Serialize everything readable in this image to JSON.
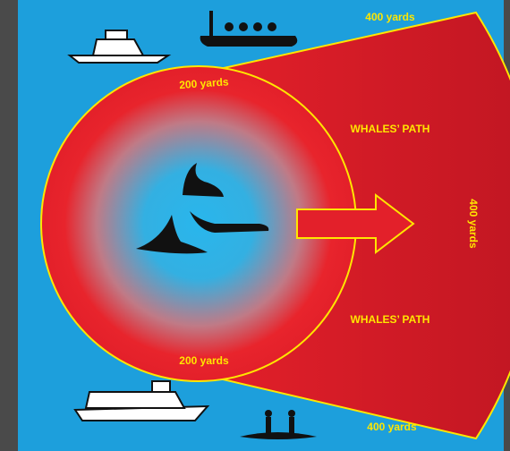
{
  "labels": {
    "outer_top": "400 yards",
    "inner_top": "200 yards",
    "path_top": "WHALES’ PATH",
    "outer_right": "400 yards",
    "path_bottom": "WHALES’ PATH",
    "inner_bottom": "200 yards",
    "outer_bottom": "400 yards"
  }
}
